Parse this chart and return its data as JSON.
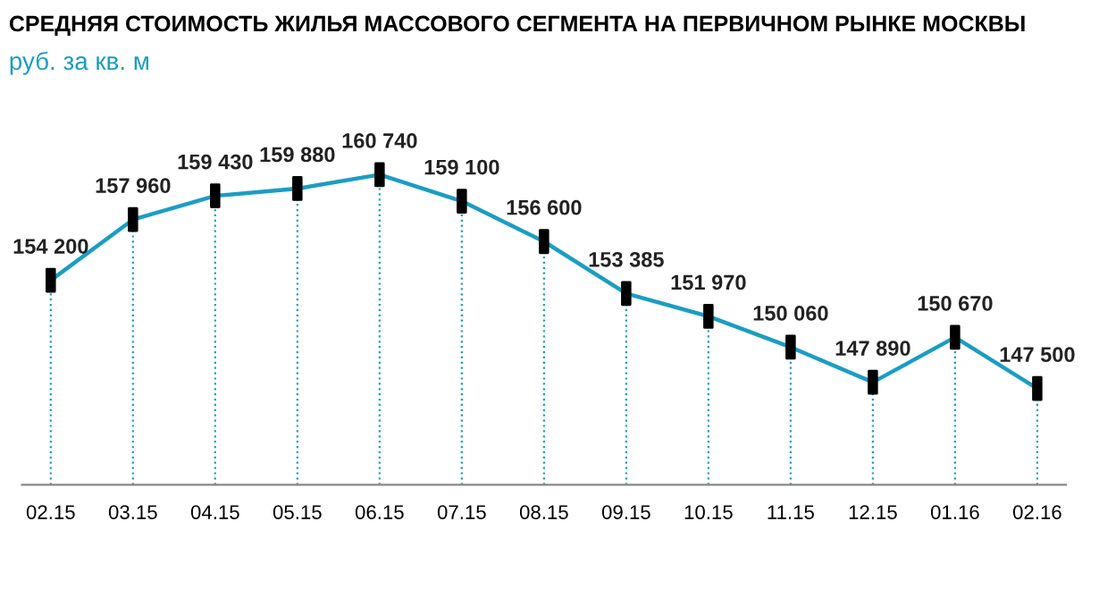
{
  "chart_data": {
    "type": "line",
    "title": "СРЕДНЯЯ СТОИМОСТЬ ЖИЛЬЯ МАССОВОГО СЕГМЕНТА НА ПЕРВИЧНОМ РЫНКЕ МОСКВЫ",
    "subtitle": "руб. за кв. м",
    "categories": [
      "02.15",
      "03.15",
      "04.15",
      "05.15",
      "06.15",
      "07.15",
      "08.15",
      "09.15",
      "10.15",
      "11.15",
      "12.15",
      "01.16",
      "02.16"
    ],
    "series": [
      {
        "color": "#1b9dc2",
        "values": [
          154200,
          157960,
          159430,
          159880,
          160740,
          159100,
          156600,
          153385,
          151970,
          150060,
          147890,
          150670,
          147500
        ],
        "value_labels": [
          "154 200",
          "157 960",
          "159 430",
          "159 880",
          "160 740",
          "159 100",
          "156 600",
          "153 385",
          "151 970",
          "150 060",
          "147 890",
          "150 670",
          "147 500"
        ]
      }
    ],
    "marker": "square",
    "line_style": "solid",
    "grid": "x",
    "legend": false
  }
}
